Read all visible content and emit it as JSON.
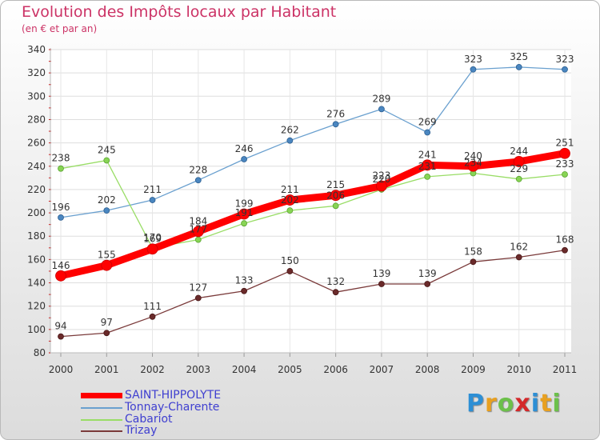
{
  "header": {
    "title": "Evolution des Impôts locaux par Habitant",
    "subtitle": "(en € et par an)"
  },
  "chart_data": {
    "type": "line",
    "title": "Evolution des Impôts locaux par Habitant",
    "subtitle": "(en € et par an)",
    "xlabel": "",
    "ylabel": "",
    "x": [
      "2000",
      "2001",
      "2002",
      "2003",
      "2004",
      "2005",
      "2006",
      "2007",
      "2008",
      "2009",
      "2010",
      "2011"
    ],
    "ylim": [
      80,
      340
    ],
    "yticks": [
      80,
      100,
      120,
      140,
      160,
      180,
      200,
      220,
      240,
      260,
      280,
      300,
      320,
      340
    ],
    "grid": true,
    "legend": "bottom-left",
    "series": [
      {
        "name": "SAINT-HIPPOLYTE",
        "color": "#ff0000",
        "values": [
          146,
          155,
          169,
          184,
          199,
          211,
          215,
          223,
          241,
          240,
          244,
          251
        ]
      },
      {
        "name": "Tonnay-Charente",
        "color": "#6aa0cf",
        "values": [
          196,
          202,
          211,
          228,
          246,
          262,
          276,
          289,
          269,
          323,
          325,
          323
        ]
      },
      {
        "name": "Cabariot",
        "color": "#99dd66",
        "values": [
          238,
          245,
          170,
          177,
          191,
          202,
          206,
          220,
          231,
          234,
          229,
          233
        ]
      },
      {
        "name": "Trizay",
        "color": "#7a3a3a",
        "values": [
          94,
          97,
          111,
          127,
          133,
          150,
          132,
          139,
          139,
          158,
          162,
          168
        ]
      }
    ]
  },
  "logo": {
    "letters": [
      "P",
      "r",
      "o",
      "x",
      "i",
      "t",
      "i"
    ],
    "colors": [
      "#2d8fd5",
      "#e8a020",
      "#6cc04a",
      "#d4282a",
      "#2d8fd5",
      "#e8a020",
      "#6cc04a"
    ]
  }
}
